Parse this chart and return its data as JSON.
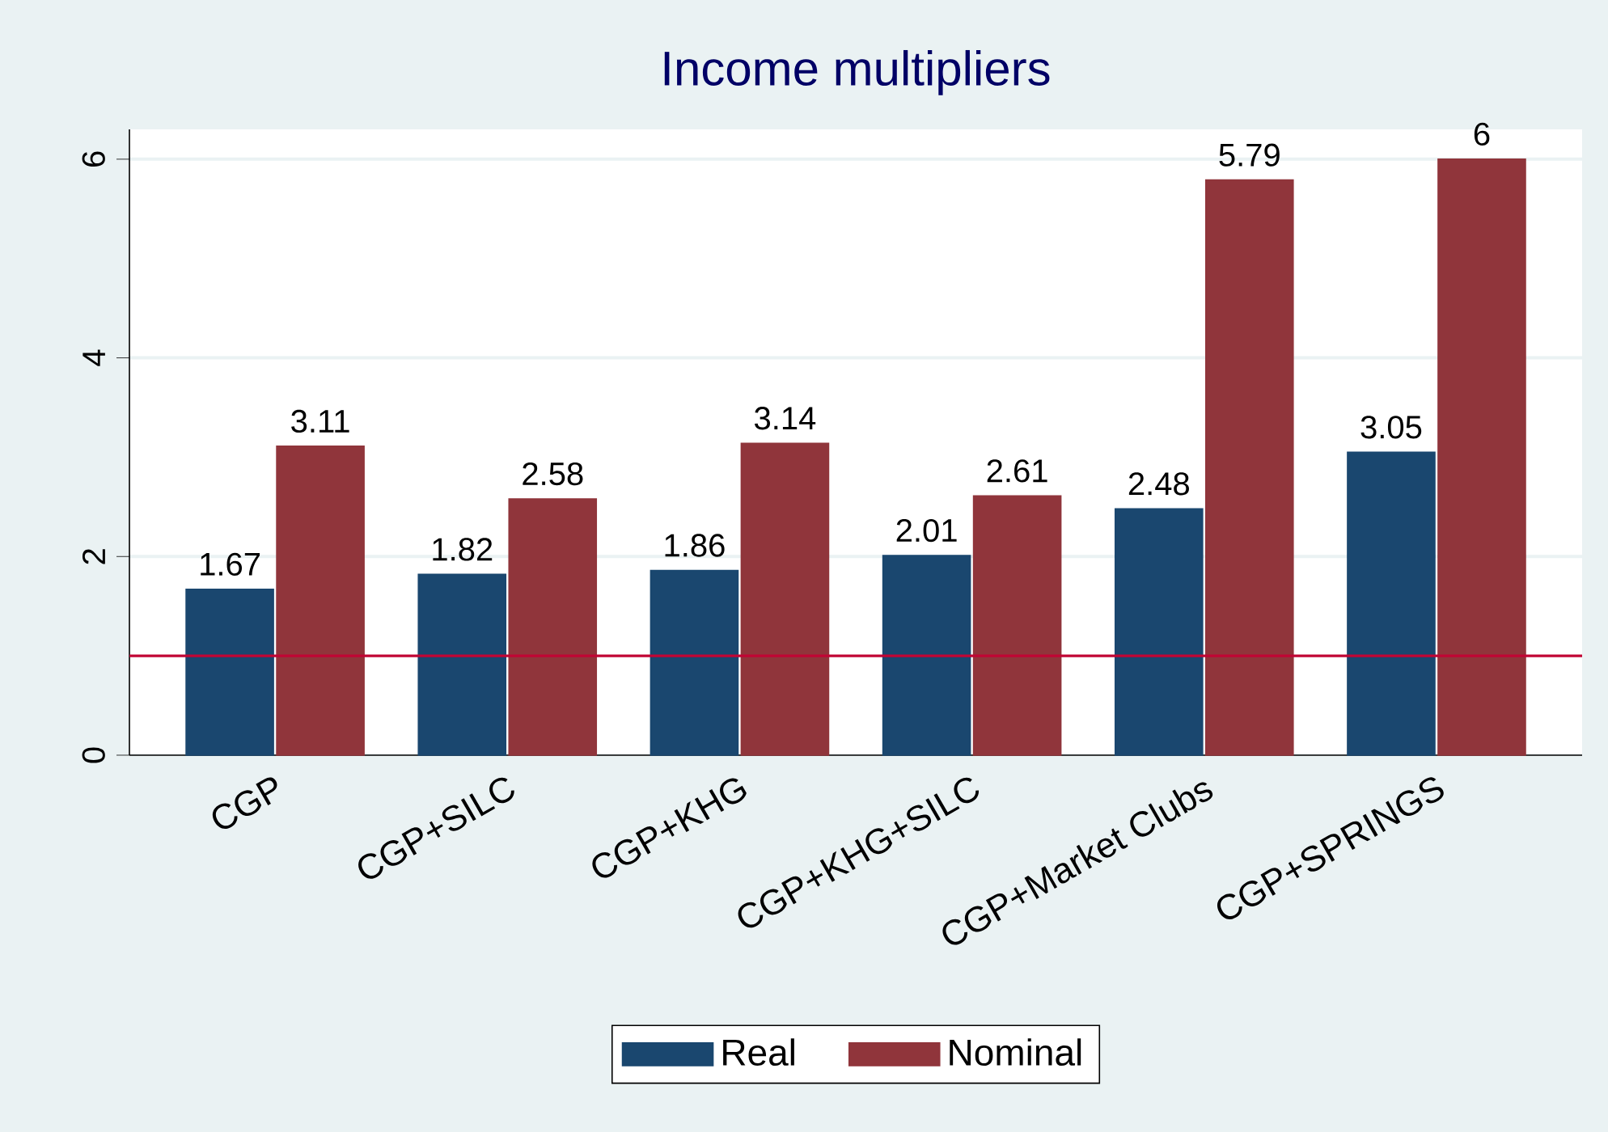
{
  "chart_data": {
    "type": "bar",
    "title": "Income multipliers",
    "categories": [
      "CGP",
      "CGP+SILC",
      "CGP+KHG",
      "CGP+KHG+SILC",
      "CGP+Market Clubs",
      "CGP+SPRINGS"
    ],
    "series": [
      {
        "name": "Real",
        "color": "#1a476f",
        "values": [
          1.67,
          1.82,
          1.86,
          2.01,
          2.48,
          3.05
        ]
      },
      {
        "name": "Nominal",
        "color": "#90353b",
        "values": [
          3.11,
          2.58,
          3.14,
          2.61,
          5.79,
          6
        ]
      }
    ],
    "ylim": [
      0,
      6.3
    ],
    "yticks": [
      0,
      2,
      4,
      6
    ],
    "grid": "y",
    "legend": "bottom",
    "data_labels": true,
    "ref_lines": [
      {
        "axis": "y",
        "value": 1,
        "color": "#c10534"
      }
    ]
  }
}
